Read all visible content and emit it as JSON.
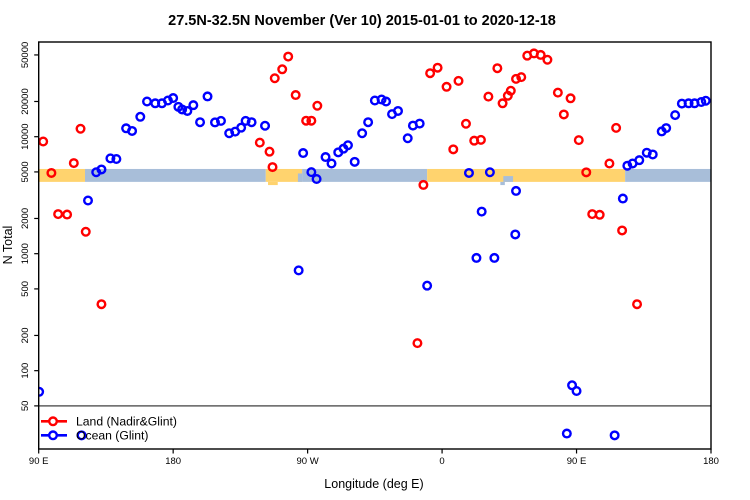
{
  "title": "27.5N-32.5N November (Ver 10)   2015-01-01 to 2020-12-18",
  "chart_data": {
    "type": "scatter",
    "title": "27.5N-32.5N November (Ver 10)   2015-01-01 to 2020-12-18",
    "xlabel": "Longitude (deg E)",
    "ylabel": "N Total",
    "x_axis": {
      "range": [
        90,
        540
      ],
      "ticks": [
        {
          "v": 90,
          "label": "90 E"
        },
        {
          "v": 180,
          "label": "180"
        },
        {
          "v": 270,
          "label": "90 W"
        },
        {
          "v": 360,
          "label": "0"
        },
        {
          "v": 450,
          "label": "90 E"
        },
        {
          "v": 540,
          "label": "180"
        }
      ]
    },
    "y_axis": {
      "scale": "log",
      "range": [
        21.4,
        64500
      ],
      "ticks": [
        {
          "v": 50,
          "label": "50"
        },
        {
          "v": 100,
          "label": "100"
        },
        {
          "v": 200,
          "label": "200"
        },
        {
          "v": 500,
          "label": "500"
        },
        {
          "v": 1000,
          "label": "1000"
        },
        {
          "v": 2000,
          "label": "2000"
        },
        {
          "v": 5000,
          "label": "5000"
        },
        {
          "v": 10000,
          "label": "10000"
        },
        {
          "v": 20000,
          "label": "20000"
        },
        {
          "v": 50000,
          "label": "50000"
        }
      ]
    },
    "reference_line": {
      "n": 50,
      "color": "#5f5f5f"
    },
    "surface_band": {
      "n_top": 5300,
      "n_bottom": 4110,
      "land_color": "#FFD36E",
      "ocean_color": "#A8BED9",
      "segments": [
        {
          "from": 90,
          "to": 121,
          "type": "land"
        },
        {
          "from": 121,
          "to": 242,
          "type": "ocean"
        },
        {
          "from": 242,
          "to": 266.3,
          "type": "land"
        },
        {
          "from": 266.3,
          "to": 350,
          "type": "ocean"
        },
        {
          "from": 350,
          "to": 482.5,
          "type": "land"
        },
        {
          "from": 482.5,
          "to": 540,
          "type": "ocean"
        }
      ],
      "notches": [
        {
          "range": [
            263.5,
            266.3
          ],
          "frac_top": 0.35
        },
        {
          "range": [
            401,
            407.5
          ],
          "frac_top": 0.55
        }
      ],
      "underhangs": [
        {
          "range": [
            243.5,
            250
          ],
          "type": "land"
        },
        {
          "range": [
            399,
            402
          ],
          "type": "ocean"
        }
      ]
    },
    "legend": [
      {
        "label": "Land (Nadir&Glint)",
        "color": "#FF0000"
      },
      {
        "label": "Ocean (Glint)",
        "color": "#0000FF"
      }
    ],
    "series": [
      {
        "name": "Land (Nadir&Glint)",
        "color": "#FF0000",
        "points": [
          [
            93,
            9100
          ],
          [
            98.5,
            4900
          ],
          [
            103,
            2180
          ],
          [
            109,
            2160
          ],
          [
            113.5,
            5950
          ],
          [
            118,
            11700
          ],
          [
            121.5,
            1540
          ],
          [
            132,
            370
          ],
          [
            238,
            8900
          ],
          [
            244.5,
            7450
          ],
          [
            246.5,
            5500
          ],
          [
            248,
            31600
          ],
          [
            253,
            37700
          ],
          [
            257,
            48400
          ],
          [
            262,
            22700
          ],
          [
            269,
            13700
          ],
          [
            272.5,
            13700
          ],
          [
            276.5,
            18400
          ],
          [
            343.5,
            172
          ],
          [
            347.5,
            3870
          ],
          [
            352,
            34900
          ],
          [
            357,
            38900
          ],
          [
            363,
            26700
          ],
          [
            367.5,
            7800
          ],
          [
            371,
            30000
          ],
          [
            376,
            12900
          ],
          [
            381.5,
            9250
          ],
          [
            386,
            9400
          ],
          [
            391,
            22000
          ],
          [
            397,
            38500
          ],
          [
            400.5,
            19300
          ],
          [
            404,
            22400
          ],
          [
            406,
            24700
          ],
          [
            409.5,
            31200
          ],
          [
            413,
            32300
          ],
          [
            417,
            49300
          ],
          [
            421.5,
            51500
          ],
          [
            426,
            50000
          ],
          [
            430.5,
            45500
          ],
          [
            437.5,
            23800
          ],
          [
            441.5,
            15500
          ],
          [
            446,
            21300
          ],
          [
            451.5,
            9350
          ],
          [
            456.5,
            4960
          ],
          [
            460.5,
            2180
          ],
          [
            465.5,
            2150
          ],
          [
            472,
            5900
          ],
          [
            476.5,
            11900
          ],
          [
            480.5,
            1580
          ],
          [
            490.5,
            370
          ]
        ]
      },
      {
        "name": "Ocean (Glint)",
        "color": "#0000FF",
        "points": [
          [
            90.3,
            66
          ],
          [
            118.7,
            28
          ],
          [
            123,
            2850
          ],
          [
            128.5,
            4970
          ],
          [
            132,
            5250
          ],
          [
            138,
            6530
          ],
          [
            142,
            6450
          ],
          [
            148.5,
            11800
          ],
          [
            152.5,
            11200
          ],
          [
            158,
            14800
          ],
          [
            162.5,
            20000
          ],
          [
            168,
            19300
          ],
          [
            172.5,
            19300
          ],
          [
            176.5,
            20400
          ],
          [
            180,
            21400
          ],
          [
            183.5,
            18000
          ],
          [
            186,
            17100
          ],
          [
            189.5,
            16600
          ],
          [
            193.5,
            18600
          ],
          [
            198,
            13300
          ],
          [
            203,
            22100
          ],
          [
            208,
            13250
          ],
          [
            212,
            13650
          ],
          [
            217.5,
            10700
          ],
          [
            221.5,
            11050
          ],
          [
            225.5,
            11950
          ],
          [
            228.5,
            13650
          ],
          [
            232.5,
            13300
          ],
          [
            241.5,
            12400
          ],
          [
            264,
            720
          ],
          [
            267,
            7250
          ],
          [
            272.5,
            4980
          ],
          [
            276,
            4350
          ],
          [
            282,
            6700
          ],
          [
            286,
            5900
          ],
          [
            290.5,
            7350
          ],
          [
            294,
            7900
          ],
          [
            297,
            8450
          ],
          [
            301.5,
            6100
          ],
          [
            306.5,
            10700
          ],
          [
            310.5,
            13300
          ],
          [
            315,
            20400
          ],
          [
            319.5,
            20800
          ],
          [
            322.5,
            20000
          ],
          [
            326.5,
            15600
          ],
          [
            330.5,
            16600
          ],
          [
            337,
            9700
          ],
          [
            340.5,
            12450
          ],
          [
            345,
            12950
          ],
          [
            350,
            533
          ],
          [
            378,
            4900
          ],
          [
            383,
            920
          ],
          [
            386.5,
            2290
          ],
          [
            392,
            4970
          ],
          [
            395,
            920
          ],
          [
            409.5,
            3440
          ],
          [
            409,
            1460
          ],
          [
            443.5,
            29
          ],
          [
            447,
            75
          ],
          [
            450,
            67
          ],
          [
            475.5,
            28
          ],
          [
            481,
            2960
          ],
          [
            484,
            5650
          ],
          [
            487.5,
            5900
          ],
          [
            492,
            6300
          ],
          [
            497,
            7300
          ],
          [
            501,
            7050
          ],
          [
            507,
            11100
          ],
          [
            510,
            11850
          ],
          [
            516,
            15300
          ],
          [
            520.5,
            19200
          ],
          [
            525,
            19300
          ],
          [
            529,
            19300
          ],
          [
            533.5,
            19800
          ],
          [
            536.5,
            20300
          ]
        ]
      }
    ]
  }
}
